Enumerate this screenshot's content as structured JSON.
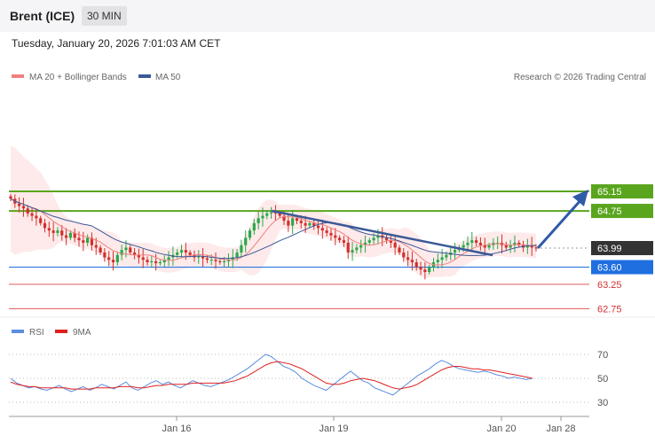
{
  "header": {
    "title": "Brent (ICE)",
    "timeframe": "30 MIN",
    "datetime": "Tuesday, January 20, 2026 7:01:03 AM CET"
  },
  "legend": {
    "ma20": "MA 20 + Bollinger Bands",
    "ma50": "MA 50",
    "credit": "Research © 2026 Trading Central",
    "rsi": "RSI",
    "rsi_ma": "9MA"
  },
  "colors": {
    "ma20": "#f08080",
    "ma50": "#3a5a98",
    "bull": "#2aa84a",
    "bear": "#d2302c",
    "resistance": "#5aa51e",
    "pivot": "#1f6fe0",
    "support": "#e05a5a",
    "last": "#333333",
    "rsi": "#5b8de0",
    "rsi_ma": "#e02020"
  },
  "chart_data": [
    {
      "type": "candlestick",
      "title": "Brent (ICE) 30 MIN",
      "x_ticks": [
        "Jan 16",
        "Jan 19",
        "Jan 20",
        "Jan 28"
      ],
      "ylim": [
        62.6,
        66.4
      ],
      "series_close": [
        65.0,
        64.9,
        64.85,
        64.8,
        64.7,
        64.65,
        64.6,
        64.5,
        64.4,
        64.35,
        64.3,
        64.35,
        64.25,
        64.2,
        64.3,
        64.2,
        64.15,
        64.1,
        64.2,
        64.05,
        64.0,
        63.9,
        63.8,
        63.75,
        63.7,
        63.85,
        63.95,
        64.0,
        63.9,
        63.85,
        63.8,
        63.75,
        63.7,
        63.72,
        63.68,
        63.7,
        63.75,
        63.8,
        63.85,
        63.9,
        63.95,
        63.9,
        63.85,
        63.8,
        63.82,
        63.78,
        63.75,
        63.75,
        63.72,
        63.7,
        63.72,
        63.75,
        63.8,
        63.9,
        64.05,
        64.2,
        64.35,
        64.5,
        64.6,
        64.65,
        64.7,
        64.72,
        64.7,
        64.65,
        64.55,
        64.45,
        64.6,
        64.55,
        64.5,
        64.45,
        64.5,
        64.45,
        64.4,
        64.35,
        64.3,
        64.25,
        64.2,
        64.15,
        64.1,
        63.9,
        63.95,
        64.0,
        64.05,
        64.1,
        64.15,
        64.2,
        64.25,
        64.2,
        64.15,
        64.1,
        64.0,
        63.9,
        63.8,
        63.75,
        63.7,
        63.6,
        63.55,
        63.5,
        63.6,
        63.7,
        63.75,
        63.8,
        63.85,
        63.9,
        63.95,
        64.0,
        64.05,
        64.1,
        64.15,
        64.1,
        64.05,
        64.0,
        64.05,
        64.1,
        64.1,
        64.05,
        64.0,
        64.05,
        64.1,
        64.05,
        64.0,
        64.05,
        64.0,
        63.99
      ],
      "bollinger": {
        "upper_start": 66.3,
        "lower_start": 63.9
      },
      "levels": [
        {
          "value": 65.15,
          "label": "65.15",
          "kind": "resistance"
        },
        {
          "value": 64.75,
          "label": "64.75",
          "kind": "resistance"
        },
        {
          "value": 63.99,
          "label": "63.99",
          "kind": "last"
        },
        {
          "value": 63.6,
          "label": "63.60",
          "kind": "pivot"
        },
        {
          "value": 63.25,
          "label": "63.25",
          "kind": "support"
        },
        {
          "value": 62.75,
          "label": "62.75",
          "kind": "support"
        }
      ]
    },
    {
      "type": "line",
      "title": "RSI",
      "ylim": [
        20,
        80
      ],
      "y_ticks": [
        "70",
        "50",
        "30"
      ],
      "series": [
        {
          "name": "RSI",
          "values": [
            50,
            46,
            44,
            42,
            43,
            41,
            40,
            42,
            44,
            41,
            39,
            41,
            43,
            40,
            42,
            45,
            43,
            41,
            44,
            47,
            42,
            40,
            43,
            46,
            48,
            45,
            47,
            44,
            42,
            45,
            48,
            46,
            44,
            43,
            45,
            47,
            49,
            52,
            55,
            58,
            62,
            66,
            70,
            68,
            64,
            60,
            58,
            55,
            50,
            47,
            44,
            42,
            40,
            44,
            48,
            52,
            56,
            52,
            48,
            46,
            42,
            40,
            38,
            36,
            40,
            44,
            48,
            52,
            55,
            58,
            62,
            65,
            63,
            60,
            58,
            57,
            56,
            55,
            56,
            55,
            53,
            52,
            50,
            51,
            50,
            49,
            50
          ]
        },
        {
          "name": "9MA",
          "values": [
            47,
            45,
            44,
            43,
            43,
            42,
            42,
            42,
            42,
            42,
            41,
            41,
            41,
            41,
            42,
            42,
            42,
            42,
            43,
            43,
            43,
            42,
            42,
            43,
            44,
            44,
            45,
            45,
            45,
            45,
            46,
            46,
            46,
            46,
            46,
            46,
            47,
            48,
            50,
            52,
            55,
            58,
            61,
            63,
            64,
            63,
            62,
            60,
            58,
            55,
            52,
            49,
            46,
            45,
            45,
            46,
            48,
            49,
            50,
            49,
            48,
            46,
            44,
            42,
            41,
            42,
            43,
            45,
            48,
            51,
            54,
            57,
            59,
            60,
            60,
            59,
            58,
            58,
            57,
            57,
            56,
            55,
            54,
            53,
            52,
            51,
            50
          ]
        }
      ]
    }
  ]
}
